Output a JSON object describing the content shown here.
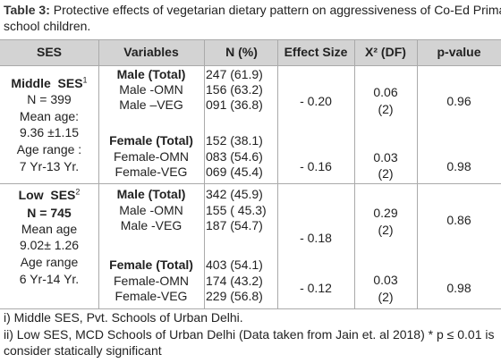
{
  "caption": {
    "label": "Table 3:",
    "text": "Protective effects of vegetarian dietary pattern on aggressiveness of Co-Ed Primary school children."
  },
  "table": {
    "headers": [
      "SES",
      "Variables",
      "N (%)",
      "Effect Size",
      "X² (DF)",
      "p-value"
    ],
    "groups": [
      {
        "ses_name": "Middle  SES",
        "ses_sup": "1",
        "ses_lines": [
          "N = 399",
          "Mean age:",
          "9.36 ±1.15",
          "Age range :",
          "7 Yr-13 Yr."
        ],
        "blocks": [
          {
            "variables": [
              "Male (Total)",
              "Male -OMN",
              "Male –VEG"
            ],
            "n": [
              "247 (61.9)",
              "156 (63.2)",
              "091 (36.8)"
            ],
            "effect": "- 0.20",
            "chi": [
              "0.06",
              "(2)"
            ],
            "p": "0.96"
          },
          {
            "variables": [
              "Female (Total)",
              "Female-OMN",
              "Female-VEG"
            ],
            "n": [
              "152 (38.1)",
              "083 (54.6)",
              "069 (45.4)"
            ],
            "effect": "- 0.16",
            "chi": [
              "0.03",
              "(2)"
            ],
            "p": "0.98"
          }
        ]
      },
      {
        "ses_name": "Low  SES",
        "ses_sup": "2",
        "ses_lines": [
          "N = 745",
          "Mean age",
          "9.02± 1.26",
          "Age range",
          "6 Yr-14 Yr."
        ],
        "blocks": [
          {
            "variables": [
              "Male (Total)",
              "Male -OMN",
              "Male -VEG"
            ],
            "n": [
              "342 (45.9)",
              "155 ( 45.3)",
              "187 (54.7)"
            ],
            "effect": "- 0.18",
            "chi": [
              "0.29",
              "(2)"
            ],
            "p": "0.86"
          },
          {
            "variables": [
              "Female (Total)",
              "Female-OMN",
              "Female-VEG"
            ],
            "n": [
              "403 (54.1)",
              "174 (43.2)",
              "229 (56.8)"
            ],
            "effect": "- 0.12",
            "chi": [
              "0.03",
              "(2)"
            ],
            "p": "0.98"
          }
        ]
      }
    ]
  },
  "footnotes": [
    "i) Middle SES, Pvt. Schools of Urban Delhi.",
    "ii) Low SES, MCD Schools of Urban Delhi (Data taken from Jain et. al 2018) * p ≤ 0.01 is consider statically significant"
  ]
}
